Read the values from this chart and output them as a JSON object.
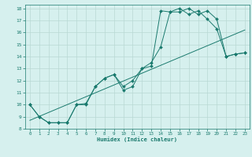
{
  "xlabel": "Humidex (Indice chaleur)",
  "bg_color": "#d6f0ee",
  "grid_color": "#b8d8d4",
  "line_color": "#1a7a6e",
  "xlim": [
    -0.5,
    23.5
  ],
  "ylim": [
    8,
    18.3
  ],
  "xticks": [
    0,
    1,
    2,
    3,
    4,
    5,
    6,
    7,
    8,
    9,
    10,
    11,
    12,
    13,
    14,
    15,
    16,
    17,
    18,
    19,
    20,
    21,
    22,
    23
  ],
  "yticks": [
    8,
    9,
    10,
    11,
    12,
    13,
    14,
    15,
    16,
    17,
    18
  ],
  "line1_x": [
    0,
    23
  ],
  "line1_y": [
    8.7,
    16.2
  ],
  "line2_x": [
    0,
    1,
    2,
    3,
    4,
    5,
    6,
    7,
    8,
    9,
    10,
    11,
    12,
    13,
    14,
    15,
    16,
    17,
    18,
    19,
    20,
    21,
    22,
    23
  ],
  "line2_y": [
    10.0,
    9.0,
    8.5,
    8.5,
    8.5,
    10.0,
    10.0,
    11.5,
    12.2,
    12.5,
    11.2,
    11.5,
    13.0,
    13.2,
    17.8,
    17.7,
    18.0,
    17.5,
    17.8,
    17.1,
    16.3,
    14.0,
    14.2,
    14.3
  ],
  "line3_x": [
    0,
    1,
    2,
    3,
    4,
    5,
    6,
    7,
    8,
    9,
    10,
    11,
    12,
    13,
    14,
    15,
    16,
    17,
    18,
    19,
    20,
    21,
    22,
    23
  ],
  "line3_y": [
    10.0,
    9.0,
    8.5,
    8.5,
    8.5,
    10.0,
    10.1,
    11.5,
    12.2,
    12.5,
    11.5,
    12.0,
    13.0,
    13.5,
    14.8,
    17.7,
    17.7,
    18.0,
    17.5,
    17.8,
    17.1,
    14.0,
    14.2,
    14.3
  ]
}
